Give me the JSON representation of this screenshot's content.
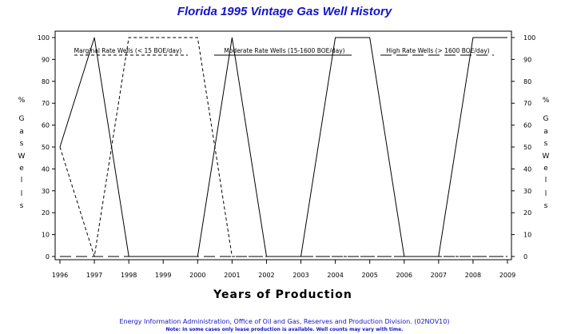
{
  "chart_data": {
    "type": "line",
    "title": "Florida 1995 Vintage Gas Well History",
    "xlabel": "Years of Production",
    "ylabel_chars": [
      "%",
      "G",
      "a",
      "s",
      "W",
      "e",
      "l",
      "l",
      "s"
    ],
    "x": [
      1996,
      1997,
      1998,
      1999,
      2000,
      2001,
      2002,
      2003,
      2004,
      2005,
      2006,
      2007,
      2008,
      2009
    ],
    "xlim": [
      1996,
      2009
    ],
    "ylim": [
      0,
      100
    ],
    "yticks": [
      0,
      10,
      20,
      30,
      40,
      50,
      60,
      70,
      80,
      90,
      100
    ],
    "grid": false,
    "series": [
      {
        "name": "Marginal Rate Wells (< 15 BOE/day)",
        "style": "dashed",
        "values": [
          50,
          0,
          100,
          100,
          100,
          0,
          0,
          0,
          0,
          0,
          0,
          0,
          0,
          0
        ]
      },
      {
        "name": "Moderate Rate Wells (15-1600 BOE/day)",
        "style": "solid",
        "values": [
          50,
          100,
          0,
          0,
          0,
          100,
          0,
          0,
          100,
          100,
          0,
          0,
          100,
          100
        ]
      },
      {
        "name": "High Rate Wells (> 1600 BOE/day)",
        "style": "longdash",
        "values": [
          0,
          0,
          0,
          0,
          0,
          0,
          0,
          0,
          0,
          0,
          0,
          0,
          0,
          0
        ]
      }
    ]
  },
  "footer": {
    "source": "Energy Information Administration, Office of Oil and Gas, Reserves and Production Division. (02NOV10)",
    "note": "Note: In some cases only lease production is available. Well counts may vary with time."
  }
}
